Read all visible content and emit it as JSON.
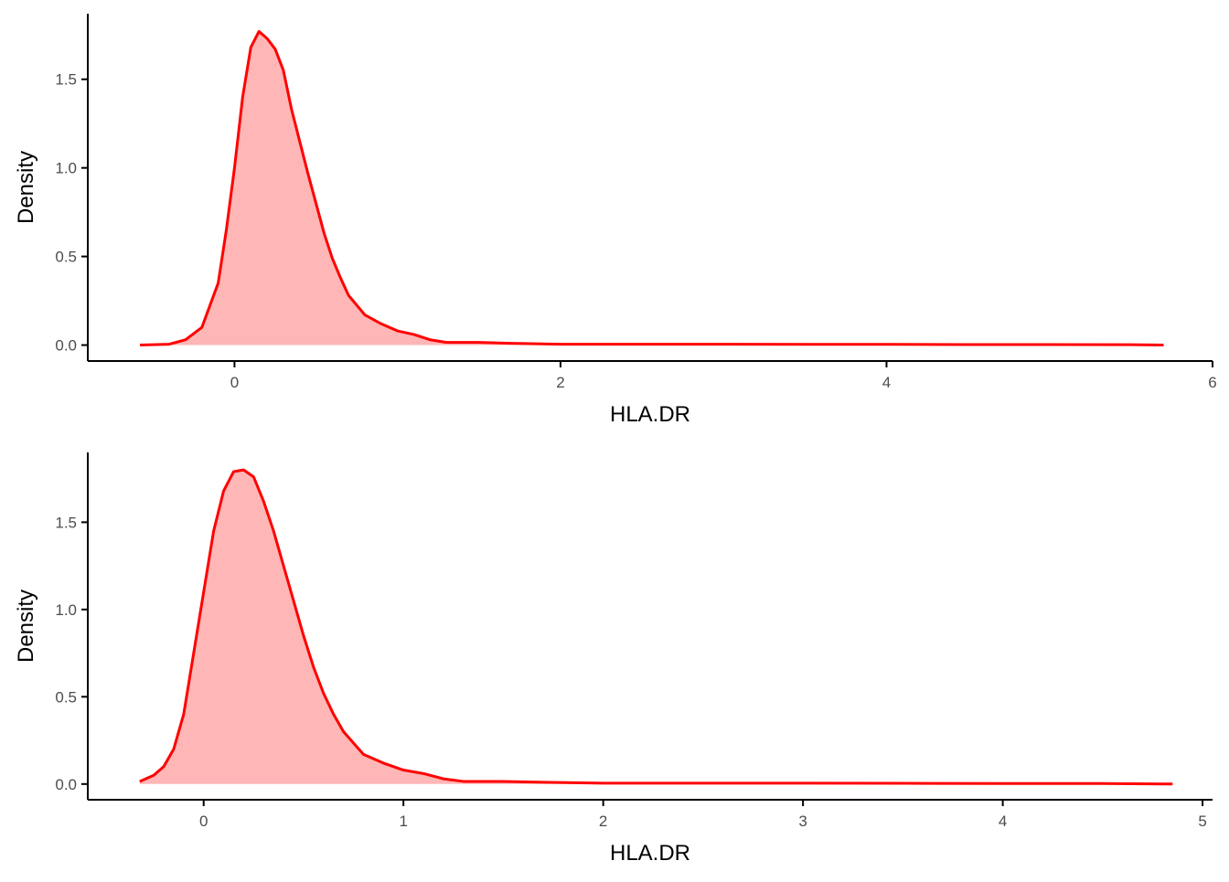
{
  "colors": {
    "line": "#ff0000",
    "fill": "#ffb6b6",
    "axis": "#000000",
    "tick_text": "#4d4d4d"
  },
  "chart_data": [
    {
      "type": "area",
      "xlabel": "HLA.DR",
      "ylabel": "Density",
      "xlim": [
        -0.9,
        6.0
      ],
      "ylim": [
        -0.09,
        1.87
      ],
      "x_ticks": [
        0,
        2,
        4,
        6
      ],
      "x_tick_labels": [
        "0",
        "2",
        "4",
        "6"
      ],
      "y_ticks": [
        0.0,
        0.5,
        1.0,
        1.5
      ],
      "y_tick_labels": [
        "0.0",
        "0.5",
        "1.0",
        "1.5"
      ],
      "grid": false,
      "legend": "none",
      "series": [
        {
          "x": [
            -0.58,
            -0.4,
            -0.3,
            -0.2,
            -0.1,
            -0.05,
            0.0,
            0.05,
            0.1,
            0.15,
            0.2,
            0.25,
            0.3,
            0.35,
            0.4,
            0.45,
            0.5,
            0.55,
            0.6,
            0.65,
            0.7,
            0.8,
            0.9,
            1.0,
            1.1,
            1.2,
            1.3,
            1.5,
            1.7,
            2.0,
            2.5,
            3.0,
            3.5,
            4.0,
            4.5,
            5.0,
            5.5,
            5.7
          ],
          "y": [
            0.0,
            0.005,
            0.03,
            0.1,
            0.35,
            0.65,
            1.0,
            1.4,
            1.68,
            1.77,
            1.73,
            1.67,
            1.55,
            1.33,
            1.15,
            0.97,
            0.8,
            0.63,
            0.49,
            0.38,
            0.28,
            0.17,
            0.12,
            0.08,
            0.06,
            0.03,
            0.015,
            0.015,
            0.01,
            0.005,
            0.005,
            0.005,
            0.004,
            0.004,
            0.003,
            0.003,
            0.002,
            0.0
          ]
        }
      ]
    },
    {
      "type": "area",
      "xlabel": "HLA.DR",
      "ylabel": "Density",
      "xlim": [
        -0.58,
        5.05
      ],
      "ylim": [
        -0.09,
        1.9
      ],
      "x_ticks": [
        0,
        1,
        2,
        3,
        4,
        5
      ],
      "x_tick_labels": [
        "0",
        "1",
        "2",
        "3",
        "4",
        "5"
      ],
      "y_ticks": [
        0.0,
        0.5,
        1.0,
        1.5
      ],
      "y_tick_labels": [
        "0.0",
        "0.5",
        "1.0",
        "1.5"
      ],
      "grid": false,
      "legend": "none",
      "series": [
        {
          "x": [
            -0.32,
            -0.25,
            -0.2,
            -0.15,
            -0.1,
            -0.05,
            0.0,
            0.05,
            0.1,
            0.15,
            0.2,
            0.25,
            0.3,
            0.35,
            0.4,
            0.45,
            0.5,
            0.55,
            0.6,
            0.65,
            0.7,
            0.8,
            0.9,
            1.0,
            1.1,
            1.2,
            1.3,
            1.5,
            1.7,
            2.0,
            2.5,
            3.0,
            3.5,
            4.0,
            4.5,
            4.85
          ],
          "y": [
            0.015,
            0.05,
            0.1,
            0.2,
            0.4,
            0.75,
            1.1,
            1.45,
            1.68,
            1.79,
            1.8,
            1.76,
            1.62,
            1.45,
            1.25,
            1.05,
            0.85,
            0.67,
            0.52,
            0.4,
            0.3,
            0.17,
            0.12,
            0.08,
            0.06,
            0.03,
            0.015,
            0.015,
            0.01,
            0.005,
            0.005,
            0.005,
            0.004,
            0.003,
            0.003,
            0.0
          ]
        }
      ]
    }
  ]
}
